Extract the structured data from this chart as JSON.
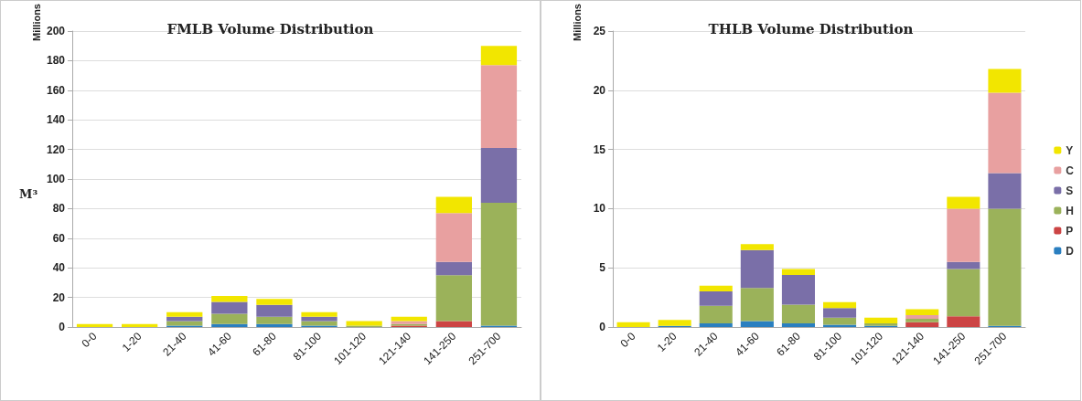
{
  "chart_data": [
    {
      "type": "bar",
      "title": "FMLB Volume Distribution",
      "ylabel": "Millions",
      "annotations": [
        "M³"
      ],
      "categories": [
        "0-0",
        "1-20",
        "21-40",
        "41-60",
        "61-80",
        "81-100",
        "101-120",
        "121-140",
        "141-250",
        "251-700"
      ],
      "stacked": true,
      "grid": "y",
      "ylim": [
        0,
        200
      ],
      "yticks": [
        0,
        20,
        40,
        60,
        80,
        100,
        120,
        140,
        160,
        180,
        200
      ],
      "series": [
        {
          "color": "#2a7fc0",
          "values": [
            0,
            0,
            1,
            2,
            2,
            1,
            0,
            0,
            0,
            1
          ]
        },
        {
          "color": "#cc4444",
          "values": [
            0,
            0,
            0,
            0,
            0,
            0,
            0,
            1,
            4,
            0
          ]
        },
        {
          "color": "#9bb25a",
          "values": [
            0,
            0,
            3,
            7,
            5,
            3,
            1,
            1,
            31,
            83
          ]
        },
        {
          "color": "#7a6fa8",
          "values": [
            0,
            0,
            3,
            8,
            8,
            3,
            null,
            0,
            9,
            37
          ]
        },
        {
          "color": "#e8a0a0",
          "values": [
            0,
            0,
            0,
            0,
            0,
            0,
            0,
            2,
            33,
            56
          ]
        },
        {
          "color": "#f2e600",
          "values": [
            2,
            2,
            3,
            4,
            4,
            3,
            3,
            3,
            11,
            13
          ]
        }
      ]
    },
    {
      "type": "bar",
      "title": "THLB Volume Distribution",
      "ylabel": "Millions",
      "categories": [
        "0-0",
        "1-20",
        "21-40",
        "41-60",
        "61-80",
        "81-100",
        "101-120",
        "121-140",
        "141-250",
        "251-700"
      ],
      "stacked": true,
      "grid": "y",
      "legend": "right",
      "ylim": [
        0,
        25
      ],
      "yticks": [
        0,
        5,
        10,
        15,
        20,
        25
      ],
      "series": [
        {
          "name": "D",
          "color": "#2a7fc0",
          "values": [
            0,
            0.1,
            0.3,
            0.5,
            0.3,
            0.2,
            0.1,
            0,
            0,
            0.1
          ]
        },
        {
          "name": "P",
          "color": "#cc4444",
          "values": [
            0,
            0,
            0,
            0,
            0,
            0,
            0,
            0.4,
            0.9,
            0
          ]
        },
        {
          "name": "H",
          "color": "#9bb25a",
          "values": [
            0,
            0,
            1.5,
            2.8,
            1.6,
            0.6,
            0.2,
            0.3,
            4,
            9.9
          ]
        },
        {
          "name": "S",
          "color": "#7a6fa8",
          "values": [
            0,
            0,
            1.2,
            3.2,
            2.5,
            0.8,
            0,
            0,
            0.6,
            3
          ]
        },
        {
          "name": "C",
          "color": "#e8a0a0",
          "values": [
            0,
            0,
            0,
            0,
            0,
            0,
            0,
            0.3,
            4.5,
            6.8
          ]
        },
        {
          "name": "Y",
          "color": "#f2e600",
          "values": [
            0.4,
            0.5,
            0.5,
            0.5,
            0.5,
            0.5,
            0.5,
            0.5,
            1,
            2
          ]
        }
      ]
    }
  ]
}
